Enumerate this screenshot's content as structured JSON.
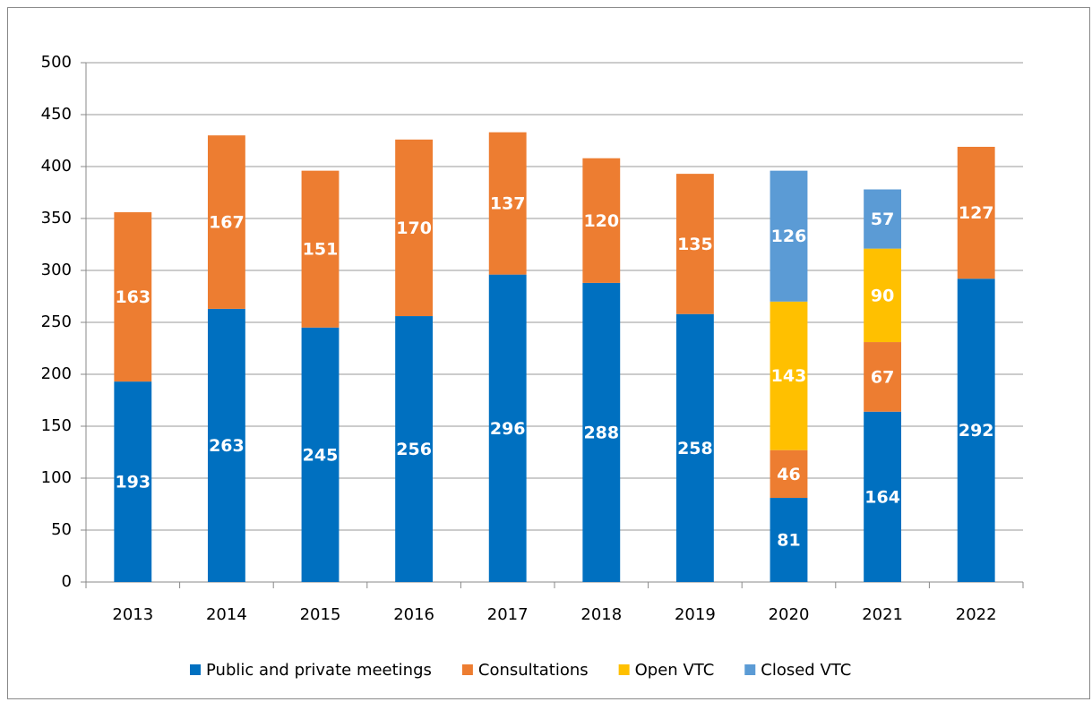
{
  "chart_data": {
    "type": "stacked_bar",
    "categories": [
      "2013",
      "2014",
      "2015",
      "2016",
      "2017",
      "2018",
      "2019",
      "2020",
      "2021",
      "2022"
    ],
    "series": [
      {
        "name": "Public and private meetings",
        "color": "#0070c0",
        "values": [
          193,
          263,
          245,
          256,
          296,
          288,
          258,
          81,
          164,
          292
        ]
      },
      {
        "name": "Consultations",
        "color": "#ed7d31",
        "values": [
          163,
          167,
          151,
          170,
          137,
          120,
          135,
          46,
          67,
          127
        ]
      },
      {
        "name": "Open VTC",
        "color": "#ffc000",
        "values": [
          null,
          null,
          null,
          null,
          null,
          null,
          null,
          143,
          90,
          null
        ]
      },
      {
        "name": "Closed VTC",
        "color": "#5b9bd5",
        "values": [
          null,
          null,
          null,
          null,
          null,
          null,
          null,
          126,
          57,
          null
        ]
      }
    ],
    "ylim": [
      0,
      500
    ],
    "yticks": [
      0,
      50,
      100,
      150,
      200,
      250,
      300,
      350,
      400,
      450,
      500
    ],
    "grid": true,
    "legend": "bottom"
  }
}
